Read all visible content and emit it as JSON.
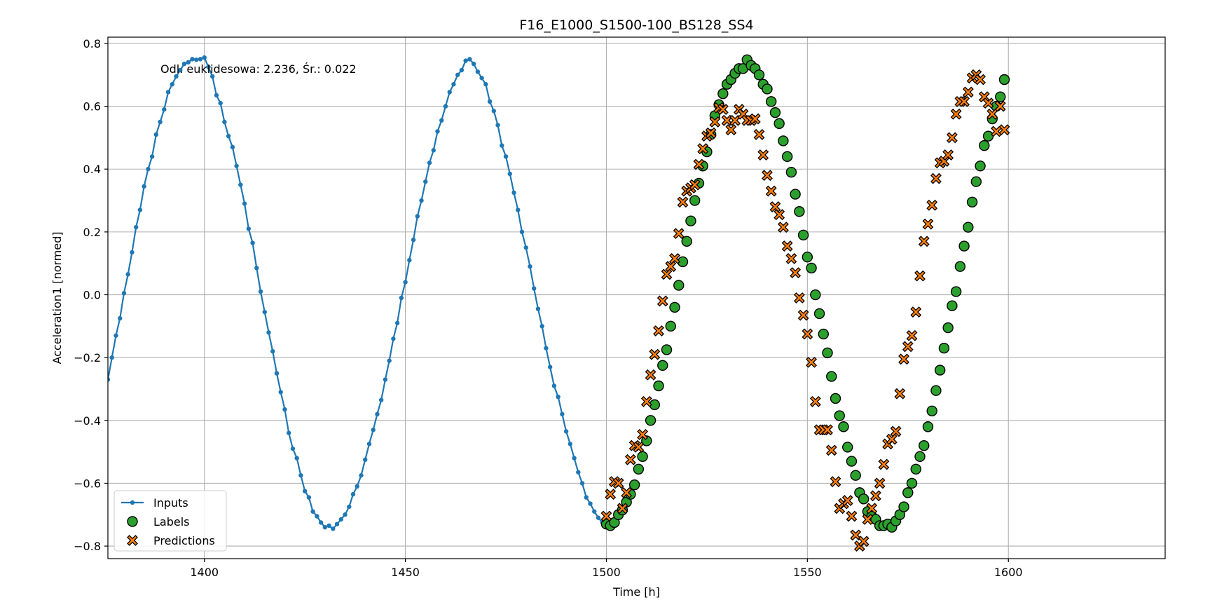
{
  "chart_data": {
    "type": "scatter",
    "title": "F16_E1000_S1500-100_BS128_SS4",
    "xlabel": "Time [h]",
    "ylabel": "Acceleration1 [normed]",
    "xlim": [
      1376,
      1639
    ],
    "ylim": [
      -0.84,
      0.82
    ],
    "xticks": [
      1400,
      1450,
      1500,
      1550,
      1600
    ],
    "yticks": [
      -0.8,
      -0.6,
      -0.4,
      -0.2,
      0.0,
      0.2,
      0.4,
      0.6,
      0.8
    ],
    "grid": true,
    "legend_position": "lower-left",
    "annotation": "Odl. euklidesowa: 2.236, Śr.: 0.022",
    "series": [
      {
        "name": "Inputs",
        "kind": "line-markers",
        "color": "#1f77b4",
        "x": [
          1376,
          1377,
          1378,
          1379,
          1380,
          1381,
          1382,
          1383,
          1384,
          1385,
          1386,
          1387,
          1388,
          1389,
          1390,
          1391,
          1392,
          1393,
          1394,
          1395,
          1396,
          1397,
          1398,
          1399,
          1400,
          1401,
          1402,
          1403,
          1404,
          1405,
          1406,
          1407,
          1408,
          1409,
          1410,
          1411,
          1412,
          1413,
          1414,
          1415,
          1416,
          1417,
          1418,
          1419,
          1420,
          1421,
          1422,
          1423,
          1424,
          1425,
          1426,
          1427,
          1428,
          1429,
          1430,
          1431,
          1432,
          1433,
          1434,
          1435,
          1436,
          1437,
          1438,
          1439,
          1440,
          1441,
          1442,
          1443,
          1444,
          1445,
          1446,
          1447,
          1448,
          1449,
          1450,
          1451,
          1452,
          1453,
          1454,
          1455,
          1456,
          1457,
          1458,
          1459,
          1460,
          1461,
          1462,
          1463,
          1464,
          1465,
          1466,
          1467,
          1468,
          1469,
          1470,
          1471,
          1472,
          1473,
          1474,
          1475,
          1476,
          1477,
          1478,
          1479,
          1480,
          1481,
          1482,
          1483,
          1484,
          1485,
          1486,
          1487,
          1488,
          1489,
          1490,
          1491,
          1492,
          1493,
          1494,
          1495,
          1496,
          1497,
          1498,
          1499
        ],
        "y": [
          -0.27,
          -0.2,
          -0.13,
          -0.075,
          0.005,
          0.065,
          0.135,
          0.215,
          0.27,
          0.345,
          0.4,
          0.44,
          0.51,
          0.55,
          0.59,
          0.645,
          0.67,
          0.695,
          0.715,
          0.735,
          0.74,
          0.75,
          0.748,
          0.75,
          0.755,
          0.725,
          0.695,
          0.635,
          0.61,
          0.55,
          0.505,
          0.47,
          0.41,
          0.35,
          0.29,
          0.21,
          0.165,
          0.085,
          0.01,
          -0.055,
          -0.12,
          -0.18,
          -0.25,
          -0.31,
          -0.365,
          -0.44,
          -0.49,
          -0.52,
          -0.575,
          -0.625,
          -0.645,
          -0.69,
          -0.705,
          -0.725,
          -0.74,
          -0.735,
          -0.745,
          -0.73,
          -0.715,
          -0.7,
          -0.675,
          -0.635,
          -0.61,
          -0.575,
          -0.525,
          -0.475,
          -0.43,
          -0.38,
          -0.335,
          -0.27,
          -0.21,
          -0.14,
          -0.09,
          -0.01,
          0.04,
          0.11,
          0.175,
          0.25,
          0.3,
          0.36,
          0.42,
          0.46,
          0.52,
          0.555,
          0.6,
          0.645,
          0.67,
          0.7,
          0.715,
          0.745,
          0.75,
          0.735,
          0.71,
          0.69,
          0.67,
          0.615,
          0.585,
          0.54,
          0.475,
          0.44,
          0.385,
          0.325,
          0.27,
          0.2,
          0.15,
          0.09,
          0.02,
          -0.045,
          -0.1,
          -0.17,
          -0.23,
          -0.29,
          -0.325,
          -0.38,
          -0.435,
          -0.475,
          -0.52,
          -0.565,
          -0.6,
          -0.645,
          -0.665,
          -0.69,
          -0.71,
          -0.725
        ]
      },
      {
        "name": "Labels",
        "kind": "scatter",
        "marker": "circle",
        "color": "#2ca02c",
        "x": [
          1500,
          1501,
          1502,
          1503,
          1504,
          1505,
          1506,
          1507,
          1508,
          1509,
          1510,
          1511,
          1512,
          1513,
          1514,
          1515,
          1516,
          1517,
          1518,
          1519,
          1520,
          1521,
          1522,
          1523,
          1524,
          1525,
          1526,
          1527,
          1528,
          1529,
          1530,
          1531,
          1532,
          1533,
          1534,
          1535,
          1536,
          1537,
          1538,
          1539,
          1540,
          1541,
          1542,
          1543,
          1544,
          1545,
          1546,
          1547,
          1548,
          1549,
          1550,
          1551,
          1552,
          1553,
          1554,
          1555,
          1556,
          1557,
          1558,
          1559,
          1560,
          1561,
          1562,
          1563,
          1564,
          1565,
          1566,
          1567,
          1568,
          1569,
          1570,
          1571,
          1572,
          1573,
          1574,
          1575,
          1576,
          1577,
          1578,
          1579,
          1580,
          1581,
          1582,
          1583,
          1584,
          1585,
          1586,
          1587,
          1588,
          1589,
          1590,
          1591,
          1592,
          1593,
          1594,
          1595,
          1596,
          1597,
          1598,
          1599
        ],
        "y": [
          -0.73,
          -0.735,
          -0.725,
          -0.7,
          -0.685,
          -0.66,
          -0.635,
          -0.605,
          -0.555,
          -0.515,
          -0.465,
          -0.4,
          -0.35,
          -0.29,
          -0.225,
          -0.175,
          -0.1,
          -0.04,
          0.03,
          0.105,
          0.17,
          0.235,
          0.3,
          0.355,
          0.41,
          0.455,
          0.51,
          0.57,
          0.605,
          0.64,
          0.67,
          0.685,
          0.705,
          0.72,
          0.72,
          0.748,
          0.73,
          0.72,
          0.7,
          0.67,
          0.655,
          0.615,
          0.58,
          0.545,
          0.49,
          0.44,
          0.39,
          0.32,
          0.265,
          0.19,
          0.12,
          0.085,
          0.0,
          -0.06,
          -0.125,
          -0.185,
          -0.26,
          -0.33,
          -0.385,
          -0.42,
          -0.485,
          -0.53,
          -0.575,
          -0.63,
          -0.65,
          -0.69,
          -0.705,
          -0.715,
          -0.735,
          -0.735,
          -0.73,
          -0.74,
          -0.72,
          -0.7,
          -0.675,
          -0.63,
          -0.6,
          -0.555,
          -0.515,
          -0.48,
          -0.42,
          -0.37,
          -0.305,
          -0.24,
          -0.17,
          -0.105,
          -0.035,
          0.01,
          0.09,
          0.155,
          0.215,
          0.295,
          0.36,
          0.41,
          0.475,
          0.505,
          0.56,
          0.6,
          0.63,
          0.685
        ]
      },
      {
        "name": "Predictions",
        "kind": "scatter",
        "marker": "x-filled",
        "color": "#ff7f0e",
        "x": [
          1500,
          1501,
          1502,
          1503,
          1504,
          1505,
          1506,
          1507,
          1508,
          1509,
          1510,
          1511,
          1512,
          1513,
          1514,
          1515,
          1516,
          1517,
          1518,
          1519,
          1520,
          1521,
          1522,
          1523,
          1524,
          1525,
          1526,
          1527,
          1528,
          1529,
          1530,
          1531,
          1532,
          1533,
          1534,
          1535,
          1536,
          1537,
          1538,
          1539,
          1540,
          1541,
          1542,
          1543,
          1544,
          1545,
          1546,
          1547,
          1548,
          1549,
          1550,
          1551,
          1552,
          1553,
          1554,
          1555,
          1556,
          1557,
          1558,
          1559,
          1560,
          1561,
          1562,
          1563,
          1564,
          1565,
          1566,
          1567,
          1568,
          1569,
          1570,
          1571,
          1572,
          1573,
          1574,
          1575,
          1576,
          1577,
          1578,
          1579,
          1580,
          1581,
          1582,
          1583,
          1584,
          1585,
          1586,
          1587,
          1588,
          1589,
          1590,
          1591,
          1592,
          1593,
          1594,
          1595,
          1596,
          1597,
          1598,
          1599
        ],
        "y": [
          -0.705,
          -0.635,
          -0.595,
          -0.6,
          -0.68,
          -0.63,
          -0.525,
          -0.48,
          -0.485,
          -0.445,
          -0.34,
          -0.255,
          -0.19,
          -0.115,
          -0.02,
          0.065,
          0.09,
          0.115,
          0.195,
          0.295,
          0.33,
          0.34,
          0.35,
          0.415,
          0.465,
          0.505,
          0.515,
          0.55,
          0.595,
          0.59,
          0.555,
          0.525,
          0.555,
          0.59,
          0.575,
          0.555,
          0.555,
          0.56,
          0.51,
          0.445,
          0.38,
          0.33,
          0.28,
          0.255,
          0.215,
          0.155,
          0.115,
          0.07,
          -0.01,
          -0.065,
          -0.125,
          -0.215,
          -0.34,
          -0.43,
          -0.43,
          -0.43,
          -0.495,
          -0.595,
          -0.68,
          -0.665,
          -0.655,
          -0.705,
          -0.765,
          -0.8,
          -0.785,
          -0.715,
          -0.68,
          -0.64,
          -0.6,
          -0.54,
          -0.475,
          -0.46,
          -0.435,
          -0.315,
          -0.205,
          -0.165,
          -0.13,
          -0.055,
          0.06,
          0.17,
          0.225,
          0.285,
          0.37,
          0.42,
          0.425,
          0.445,
          0.5,
          0.575,
          0.615,
          0.615,
          0.645,
          0.69,
          0.7,
          0.685,
          0.63,
          0.61,
          0.575,
          0.52,
          0.6,
          0.525
        ]
      }
    ]
  }
}
